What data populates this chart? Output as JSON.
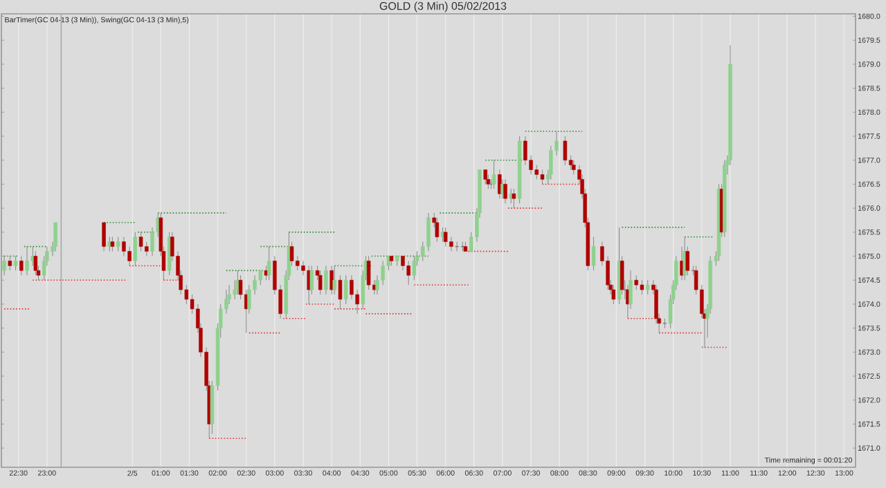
{
  "chart_data": {
    "type": "candlestick",
    "title": "GOLD (3 Min) 05/02/2013",
    "annotations": [
      "BarTimer(GC 04-13 (3 Min)), Swing(GC 04-13 (3 Min),5)",
      "Time remaining = 00:01:20"
    ],
    "x": [
      "2013-02-04T22:15",
      "2013-02-04T22:21",
      "2013-02-04T22:27",
      "2013-02-04T22:33",
      "2013-02-04T22:39",
      "2013-02-04T22:45",
      "2013-02-04T22:48",
      "2013-02-04T22:51",
      "2013-02-04T22:57",
      "2013-02-04T23:00",
      "2013-02-04T23:06",
      "2013-02-04T23:09",
      "2013-02-05T00:00",
      "2013-02-05T00:06",
      "2013-02-05T00:09",
      "2013-02-05T00:15",
      "2013-02-05T00:21",
      "2013-02-05T00:27",
      "2013-02-05T00:33",
      "2013-02-05T00:39",
      "2013-02-05T00:45",
      "2013-02-05T00:51",
      "2013-02-05T00:57",
      "2013-02-05T01:00",
      "2013-02-05T01:03",
      "2013-02-05T01:09",
      "2013-02-05T01:12",
      "2013-02-05T01:18",
      "2013-02-05T01:21",
      "2013-02-05T01:27",
      "2013-02-05T01:33",
      "2013-02-05T01:39",
      "2013-02-05T01:42",
      "2013-02-05T01:48",
      "2013-02-05T01:51",
      "2013-02-05T01:54",
      "2013-02-05T02:00",
      "2013-02-05T02:03",
      "2013-02-05T02:09",
      "2013-02-05T02:12",
      "2013-02-05T02:18",
      "2013-02-05T02:21",
      "2013-02-05T02:24",
      "2013-02-05T02:30",
      "2013-02-05T02:33",
      "2013-02-05T02:39",
      "2013-02-05T02:45",
      "2013-02-05T02:51",
      "2013-02-05T02:54",
      "2013-02-05T03:00",
      "2013-02-05T03:06",
      "2013-02-05T03:12",
      "2013-02-05T03:15",
      "2013-02-05T03:18",
      "2013-02-05T03:24",
      "2013-02-05T03:30",
      "2013-02-05T03:36",
      "2013-02-05T03:39",
      "2013-02-05T03:45",
      "2013-02-05T03:48",
      "2013-02-05T03:54",
      "2013-02-05T04:00",
      "2013-02-05T04:03",
      "2013-02-05T04:09",
      "2013-02-05T04:15",
      "2013-02-05T04:21",
      "2013-02-05T04:27",
      "2013-02-05T04:33",
      "2013-02-05T04:36",
      "2013-02-05T04:39",
      "2013-02-05T04:45",
      "2013-02-05T04:48",
      "2013-02-05T04:54",
      "2013-02-05T05:00",
      "2013-02-05T05:03",
      "2013-02-05T05:09",
      "2013-02-05T05:15",
      "2013-02-05T05:21",
      "2013-02-05T05:27",
      "2013-02-05T05:30",
      "2013-02-05T05:36",
      "2013-02-05T05:42",
      "2013-02-05T05:48",
      "2013-02-05T05:51",
      "2013-02-05T05:57",
      "2013-02-05T06:00",
      "2013-02-05T06:06",
      "2013-02-05T06:12",
      "2013-02-05T06:18",
      "2013-02-05T06:21",
      "2013-02-05T06:27",
      "2013-02-05T06:33",
      "2013-02-05T06:36",
      "2013-02-05T06:42",
      "2013-02-05T06:45",
      "2013-02-05T06:48",
      "2013-02-05T06:51",
      "2013-02-05T06:57",
      "2013-02-05T07:00",
      "2013-02-05T07:03",
      "2013-02-05T07:09",
      "2013-02-05T07:12",
      "2013-02-05T07:18",
      "2013-02-05T07:24",
      "2013-02-05T07:30",
      "2013-02-05T07:36",
      "2013-02-05T07:42",
      "2013-02-05T07:48",
      "2013-02-05T07:51",
      "2013-02-05T07:57",
      "2013-02-05T08:06",
      "2013-02-05T08:12",
      "2013-02-05T08:15",
      "2013-02-05T08:21",
      "2013-02-05T08:24",
      "2013-02-05T08:27",
      "2013-02-05T08:30",
      "2013-02-05T08:36",
      "2013-02-05T08:45",
      "2013-02-05T08:51",
      "2013-02-05T08:54",
      "2013-02-05T08:57",
      "2013-02-05T09:03",
      "2013-02-05T09:06",
      "2013-02-05T09:09",
      "2013-02-05T09:12",
      "2013-02-05T09:15",
      "2013-02-05T09:21",
      "2013-02-05T09:27",
      "2013-02-05T09:33",
      "2013-02-05T09:39",
      "2013-02-05T09:42",
      "2013-02-05T09:45",
      "2013-02-05T09:51",
      "2013-02-05T09:57",
      "2013-02-05T10:00",
      "2013-02-05T10:03",
      "2013-02-05T10:09",
      "2013-02-05T10:12",
      "2013-02-05T10:15",
      "2013-02-05T10:21",
      "2013-02-05T10:24",
      "2013-02-05T10:30",
      "2013-02-05T10:33",
      "2013-02-05T10:36",
      "2013-02-05T10:39",
      "2013-02-05T10:45",
      "2013-02-05T10:48",
      "2013-02-05T10:51",
      "2013-02-05T10:54",
      "2013-02-05T10:57",
      "2013-02-05T11:00"
    ],
    "ohlc": [
      [
        1674.7,
        1675.0,
        1674.6,
        1674.9
      ],
      [
        1674.9,
        1675.0,
        1674.7,
        1674.8
      ],
      [
        1674.8,
        1675.0,
        1674.7,
        1674.9
      ],
      [
        1674.9,
        1675.0,
        1674.6,
        1674.7
      ],
      [
        1674.7,
        1675.2,
        1674.6,
        1674.9
      ],
      [
        1674.9,
        1675.2,
        1674.8,
        1675.0
      ],
      [
        1675.0,
        1675.1,
        1674.6,
        1674.7
      ],
      [
        1674.7,
        1674.8,
        1674.5,
        1674.6
      ],
      [
        1674.6,
        1675.0,
        1674.5,
        1674.9
      ],
      [
        1674.9,
        1675.2,
        1674.8,
        1675.1
      ],
      [
        1675.1,
        1675.3,
        1675.0,
        1675.2
      ],
      [
        1675.2,
        1675.7,
        1675.1,
        1675.7
      ],
      [
        1675.7,
        1675.7,
        1675.1,
        1675.2
      ],
      [
        1675.2,
        1675.4,
        1675.1,
        1675.3
      ],
      [
        1675.3,
        1675.4,
        1675.1,
        1675.2
      ],
      [
        1675.2,
        1675.4,
        1675.1,
        1675.3
      ],
      [
        1675.3,
        1675.4,
        1675.0,
        1675.1
      ],
      [
        1675.1,
        1675.2,
        1674.8,
        1674.9
      ],
      [
        1674.9,
        1675.5,
        1674.8,
        1675.4
      ],
      [
        1675.4,
        1675.5,
        1675.1,
        1675.2
      ],
      [
        1675.2,
        1675.3,
        1675.0,
        1675.1
      ],
      [
        1675.1,
        1675.6,
        1675.0,
        1675.5
      ],
      [
        1675.5,
        1675.9,
        1675.4,
        1675.8
      ],
      [
        1675.8,
        1675.9,
        1675.0,
        1675.1
      ],
      [
        1675.1,
        1675.2,
        1674.5,
        1674.7
      ],
      [
        1674.7,
        1675.5,
        1674.6,
        1675.4
      ],
      [
        1675.4,
        1675.5,
        1674.9,
        1675.0
      ],
      [
        1675.0,
        1675.1,
        1674.5,
        1674.6
      ],
      [
        1674.6,
        1674.7,
        1674.2,
        1674.3
      ],
      [
        1674.3,
        1674.4,
        1674.0,
        1674.1
      ],
      [
        1674.1,
        1674.2,
        1673.8,
        1673.9
      ],
      [
        1673.9,
        1674.0,
        1673.4,
        1673.5
      ],
      [
        1673.5,
        1673.6,
        1672.9,
        1673.0
      ],
      [
        1673.0,
        1673.1,
        1672.2,
        1672.3
      ],
      [
        1672.3,
        1672.4,
        1671.2,
        1671.5
      ],
      [
        1671.5,
        1672.4,
        1671.3,
        1672.3
      ],
      [
        1672.3,
        1673.6,
        1672.2,
        1673.5
      ],
      [
        1673.5,
        1674.0,
        1673.3,
        1673.9
      ],
      [
        1673.9,
        1674.3,
        1673.8,
        1674.1
      ],
      [
        1674.1,
        1674.4,
        1674.0,
        1674.2
      ],
      [
        1674.2,
        1674.5,
        1674.1,
        1674.3
      ],
      [
        1674.3,
        1674.7,
        1674.2,
        1674.5
      ],
      [
        1674.5,
        1674.6,
        1674.1,
        1674.2
      ],
      [
        1674.2,
        1674.3,
        1673.4,
        1673.9
      ],
      [
        1673.9,
        1674.4,
        1673.8,
        1674.3
      ],
      [
        1674.3,
        1674.6,
        1674.2,
        1674.5
      ],
      [
        1674.5,
        1674.7,
        1674.4,
        1674.7
      ],
      [
        1674.7,
        1674.8,
        1674.5,
        1674.6
      ],
      [
        1674.6,
        1675.2,
        1674.5,
        1674.9
      ],
      [
        1674.9,
        1675.0,
        1674.2,
        1674.3
      ],
      [
        1674.3,
        1674.4,
        1673.7,
        1673.8
      ],
      [
        1673.8,
        1674.7,
        1673.7,
        1674.6
      ],
      [
        1674.6,
        1675.5,
        1674.5,
        1675.2
      ],
      [
        1675.2,
        1675.3,
        1674.8,
        1674.9
      ],
      [
        1674.9,
        1675.0,
        1674.7,
        1674.8
      ],
      [
        1674.8,
        1674.9,
        1674.6,
        1674.7
      ],
      [
        1674.7,
        1674.8,
        1674.0,
        1674.3
      ],
      [
        1674.3,
        1674.8,
        1674.2,
        1674.7
      ],
      [
        1674.7,
        1674.8,
        1674.5,
        1674.6
      ],
      [
        1674.6,
        1674.7,
        1674.2,
        1674.3
      ],
      [
        1674.3,
        1674.8,
        1674.2,
        1674.7
      ],
      [
        1674.7,
        1674.8,
        1674.2,
        1674.3
      ],
      [
        1674.3,
        1674.8,
        1674.2,
        1674.5
      ],
      [
        1674.5,
        1674.6,
        1673.9,
        1674.1
      ],
      [
        1674.1,
        1674.6,
        1674.0,
        1674.5
      ],
      [
        1674.5,
        1674.6,
        1674.1,
        1674.2
      ],
      [
        1674.2,
        1674.3,
        1673.8,
        1674.0
      ],
      [
        1674.0,
        1674.7,
        1673.9,
        1674.6
      ],
      [
        1674.6,
        1675.0,
        1674.5,
        1674.9
      ],
      [
        1674.9,
        1675.0,
        1674.3,
        1674.4
      ],
      [
        1674.4,
        1674.5,
        1674.2,
        1674.3
      ],
      [
        1674.3,
        1674.6,
        1674.2,
        1674.5
      ],
      [
        1674.5,
        1674.9,
        1674.4,
        1674.8
      ],
      [
        1674.8,
        1675.0,
        1674.7,
        1675.0
      ],
      [
        1675.0,
        1675.0,
        1674.8,
        1674.9
      ],
      [
        1674.9,
        1675.0,
        1674.8,
        1675.0
      ],
      [
        1675.0,
        1675.0,
        1674.7,
        1674.8
      ],
      [
        1674.8,
        1674.9,
        1674.4,
        1674.6
      ],
      [
        1674.6,
        1675.0,
        1674.5,
        1674.9
      ],
      [
        1674.9,
        1675.1,
        1674.8,
        1675.0
      ],
      [
        1675.0,
        1675.3,
        1674.9,
        1675.2
      ],
      [
        1675.2,
        1675.9,
        1675.1,
        1675.8
      ],
      [
        1675.8,
        1675.9,
        1675.6,
        1675.7
      ],
      [
        1675.7,
        1675.8,
        1675.3,
        1675.4
      ],
      [
        1675.4,
        1675.6,
        1675.3,
        1675.5
      ],
      [
        1675.5,
        1675.6,
        1675.2,
        1675.3
      ],
      [
        1675.3,
        1675.4,
        1675.1,
        1675.2
      ],
      [
        1675.2,
        1675.3,
        1675.1,
        1675.2
      ],
      [
        1675.2,
        1675.3,
        1675.1,
        1675.2
      ],
      [
        1675.2,
        1675.3,
        1675.1,
        1675.1
      ],
      [
        1675.1,
        1675.5,
        1675.1,
        1675.4
      ],
      [
        1675.4,
        1676.0,
        1675.3,
        1675.9
      ],
      [
        1675.9,
        1676.8,
        1675.8,
        1676.8
      ],
      [
        1676.8,
        1676.8,
        1676.5,
        1676.6
      ],
      [
        1676.6,
        1676.7,
        1676.4,
        1676.5
      ],
      [
        1676.5,
        1676.6,
        1676.4,
        1676.5
      ],
      [
        1676.5,
        1677.0,
        1676.4,
        1676.7
      ],
      [
        1676.7,
        1676.8,
        1676.2,
        1676.3
      ],
      [
        1676.3,
        1676.6,
        1676.2,
        1676.5
      ],
      [
        1676.5,
        1676.6,
        1676.1,
        1676.2
      ],
      [
        1676.2,
        1676.4,
        1676.1,
        1676.3
      ],
      [
        1676.3,
        1676.4,
        1676.0,
        1676.2
      ],
      [
        1676.2,
        1677.5,
        1676.1,
        1677.4
      ],
      [
        1677.4,
        1677.5,
        1676.9,
        1677.0
      ],
      [
        1677.0,
        1677.1,
        1676.7,
        1676.8
      ],
      [
        1676.8,
        1676.9,
        1676.6,
        1676.7
      ],
      [
        1676.7,
        1676.8,
        1676.5,
        1676.6
      ],
      [
        1676.6,
        1676.8,
        1676.5,
        1676.7
      ],
      [
        1676.7,
        1677.3,
        1676.6,
        1677.2
      ],
      [
        1677.2,
        1677.6,
        1677.1,
        1677.4
      ],
      [
        1677.4,
        1677.5,
        1676.9,
        1677.0
      ],
      [
        1677.0,
        1677.1,
        1676.8,
        1676.9
      ],
      [
        1676.9,
        1677.0,
        1676.7,
        1676.8
      ],
      [
        1676.8,
        1676.9,
        1676.5,
        1676.6
      ],
      [
        1676.6,
        1676.7,
        1676.2,
        1676.3
      ],
      [
        1676.3,
        1676.4,
        1675.6,
        1675.7
      ],
      [
        1675.7,
        1675.8,
        1674.7,
        1674.8
      ],
      [
        1674.8,
        1675.4,
        1674.7,
        1675.2
      ],
      [
        1675.2,
        1675.3,
        1674.8,
        1674.9
      ],
      [
        1674.9,
        1675.0,
        1674.3,
        1674.4
      ],
      [
        1674.4,
        1674.5,
        1674.2,
        1674.3
      ],
      [
        1674.3,
        1674.4,
        1674.0,
        1674.1
      ],
      [
        1674.1,
        1675.6,
        1674.0,
        1674.9
      ],
      [
        1674.9,
        1675.0,
        1674.2,
        1674.3
      ],
      [
        1674.3,
        1674.5,
        1674.1,
        1674.3
      ],
      [
        1674.3,
        1674.4,
        1673.7,
        1674.0
      ],
      [
        1674.0,
        1674.7,
        1673.9,
        1674.5
      ],
      [
        1674.5,
        1674.6,
        1674.3,
        1674.4
      ],
      [
        1674.4,
        1674.5,
        1674.2,
        1674.3
      ],
      [
        1674.3,
        1674.5,
        1674.2,
        1674.4
      ],
      [
        1674.4,
        1674.5,
        1674.2,
        1674.3
      ],
      [
        1674.3,
        1674.4,
        1673.6,
        1673.7
      ],
      [
        1673.7,
        1673.8,
        1673.4,
        1673.6
      ],
      [
        1673.6,
        1673.7,
        1673.5,
        1673.6
      ],
      [
        1673.6,
        1674.2,
        1673.5,
        1674.1
      ],
      [
        1674.1,
        1674.5,
        1674.0,
        1674.4
      ],
      [
        1674.4,
        1675.0,
        1674.3,
        1674.9
      ],
      [
        1674.9,
        1675.2,
        1674.5,
        1674.6
      ],
      [
        1674.6,
        1675.4,
        1674.5,
        1675.1
      ],
      [
        1675.1,
        1675.2,
        1674.6,
        1674.7
      ],
      [
        1674.7,
        1674.8,
        1674.6,
        1674.7
      ],
      [
        1674.7,
        1674.8,
        1674.2,
        1674.3
      ],
      [
        1674.3,
        1674.4,
        1673.7,
        1673.8
      ],
      [
        1673.8,
        1673.9,
        1673.1,
        1673.7
      ],
      [
        1673.7,
        1674.0,
        1673.3,
        1673.9
      ],
      [
        1673.9,
        1675.0,
        1673.8,
        1674.9
      ],
      [
        1674.9,
        1675.1,
        1674.8,
        1675.0
      ],
      [
        1675.0,
        1676.5,
        1674.9,
        1676.4
      ],
      [
        1676.4,
        1676.5,
        1675.4,
        1675.5
      ],
      [
        1675.5,
        1677.0,
        1675.4,
        1676.9
      ],
      [
        1676.9,
        1677.1,
        1676.7,
        1677.0
      ],
      [
        1677.0,
        1679.4,
        1676.9,
        1679.0
      ]
    ],
    "colors": [
      "#8fd18f",
      "#b00000",
      "#8fd18f",
      "#b00000",
      "#8fd18f",
      "#8fd18f",
      "#b00000",
      "#b00000",
      "#8fd18f",
      "#8fd18f",
      "#8fd18f",
      "#8fd18f",
      "#b00000",
      "#8fd18f",
      "#b00000",
      "#8fd18f",
      "#b00000",
      "#b00000",
      "#8fd18f",
      "#b00000",
      "#b00000",
      "#8fd18f",
      "#8fd18f",
      "#b00000",
      "#b00000",
      "#8fd18f",
      "#b00000",
      "#b00000",
      "#b00000",
      "#b00000",
      "#b00000",
      "#b00000",
      "#b00000",
      "#b00000",
      "#b00000",
      "#8fd18f",
      "#8fd18f",
      "#8fd18f",
      "#8fd18f",
      "#8fd18f",
      "#8fd18f",
      "#8fd18f",
      "#b00000",
      "#b00000",
      "#8fd18f",
      "#8fd18f",
      "#8fd18f",
      "#b00000",
      "#8fd18f",
      "#b00000",
      "#b00000",
      "#8fd18f",
      "#8fd18f",
      "#b00000",
      "#b00000",
      "#b00000",
      "#b00000",
      "#8fd18f",
      "#b00000",
      "#b00000",
      "#8fd18f",
      "#b00000",
      "#8fd18f",
      "#b00000",
      "#8fd18f",
      "#b00000",
      "#b00000",
      "#8fd18f",
      "#8fd18f",
      "#b00000",
      "#b00000",
      "#8fd18f",
      "#8fd18f",
      "#8fd18f",
      "#b00000",
      "#8fd18f",
      "#b00000",
      "#b00000",
      "#8fd18f",
      "#8fd18f",
      "#8fd18f",
      "#8fd18f",
      "#b00000",
      "#b00000",
      "#8fd18f",
      "#b00000",
      "#b00000",
      "#808080",
      "#808080",
      "#b00000",
      "#8fd18f",
      "#8fd18f",
      "#8fd18f",
      "#b00000",
      "#b00000",
      "#808080",
      "#8fd18f",
      "#b00000",
      "#8fd18f",
      "#b00000",
      "#8fd18f",
      "#b00000",
      "#8fd18f",
      "#b00000",
      "#b00000",
      "#b00000",
      "#b00000",
      "#8fd18f",
      "#8fd18f",
      "#8fd18f",
      "#b00000",
      "#b00000",
      "#b00000",
      "#b00000",
      "#b00000",
      "#b00000",
      "#b00000",
      "#8fd18f",
      "#b00000",
      "#b00000",
      "#b00000",
      "#b00000",
      "#8fd18f",
      "#b00000",
      "#808080",
      "#b00000",
      "#8fd18f",
      "#b00000",
      "#b00000",
      "#8fd18f",
      "#b00000",
      "#b00000",
      "#b00000",
      "#808080",
      "#8fd18f",
      "#8fd18f",
      "#8fd18f",
      "#b00000",
      "#8fd18f",
      "#b00000",
      "#808080",
      "#b00000",
      "#b00000",
      "#b00000",
      "#8fd18f",
      "#8fd18f",
      "#8fd18f",
      "#8fd18f",
      "#b00000",
      "#8fd18f",
      "#8fd18f",
      "#8fd18f"
    ],
    "series": [
      {
        "type": "line",
        "color": "#2e8b2e",
        "line_style": "dotted",
        "x": [
          "2013-02-04T22:15",
          "2013-02-04T22:30",
          null,
          "2013-02-04T22:36",
          "2013-02-04T23:00",
          null,
          "2013-02-05T00:00",
          "2013-02-05T00:33",
          null,
          "2013-02-05T00:36",
          "2013-02-05T00:54",
          null,
          "2013-02-05T00:57",
          "2013-02-05T02:09",
          null,
          "2013-02-05T02:09",
          "2013-02-05T02:48",
          null,
          "2013-02-05T02:45",
          "2013-02-05T03:15",
          null,
          "2013-02-05T03:15",
          "2013-02-05T04:03",
          null,
          "2013-02-05T04:03",
          "2013-02-05T04:42",
          null,
          "2013-02-05T04:42",
          "2013-02-05T05:42",
          null,
          "2013-02-05T05:54",
          "2013-02-05T06:33",
          null,
          "2013-02-05T06:42",
          "2013-02-05T07:21",
          null,
          "2013-02-05T07:24",
          "2013-02-05T08:24",
          null,
          "2013-02-05T09:06",
          "2013-02-05T10:12",
          null,
          "2013-02-05T10:12",
          "2013-02-05T10:42"
        ],
        "values": [
          1675.0,
          1675.0,
          null,
          1675.2,
          1675.2,
          null,
          1675.7,
          1675.7,
          null,
          1675.5,
          1675.5,
          null,
          1675.9,
          1675.9,
          null,
          1674.7,
          1674.7,
          null,
          1675.2,
          1675.2,
          null,
          1675.5,
          1675.5,
          null,
          1674.8,
          1674.8,
          null,
          1675.0,
          1675.0,
          null,
          1675.9,
          1675.9,
          null,
          1677.0,
          1677.0,
          null,
          1677.6,
          1677.6,
          null,
          1675.6,
          1675.6,
          null,
          1675.4,
          1675.4
        ]
      },
      {
        "type": "line",
        "color": "#e03030",
        "line_style": "dotted",
        "x": [
          "2013-02-04T22:15",
          "2013-02-04T22:42",
          null,
          "2013-02-04T22:45",
          "2013-02-05T00:24",
          null,
          "2013-02-05T00:27",
          "2013-02-05T01:03",
          null,
          "2013-02-05T01:03",
          "2013-02-05T01:24",
          null,
          "2013-02-05T01:51",
          "2013-02-05T02:30",
          null,
          "2013-02-05T02:33",
          "2013-02-05T03:06",
          null,
          "2013-02-05T03:09",
          "2013-02-05T03:33",
          null,
          "2013-02-05T03:33",
          "2013-02-05T04:03",
          null,
          "2013-02-05T04:03",
          "2013-02-05T04:36",
          null,
          "2013-02-05T04:36",
          "2013-02-05T05:24",
          null,
          "2013-02-05T05:27",
          "2013-02-05T06:24",
          null,
          "2013-02-05T06:24",
          "2013-02-05T07:06",
          null,
          "2013-02-05T07:06",
          "2013-02-05T07:42",
          null,
          "2013-02-05T07:42",
          "2013-02-05T08:24",
          null,
          "2013-02-05T09:12",
          "2013-02-05T09:45",
          null,
          "2013-02-05T09:45",
          "2013-02-05T10:30",
          null,
          "2013-02-05T10:30",
          "2013-02-05T10:57"
        ],
        "values": [
          1673.9,
          1673.9,
          null,
          1674.5,
          1674.5,
          null,
          1674.8,
          1674.8,
          null,
          1674.5,
          1674.5,
          null,
          1671.2,
          1671.2,
          null,
          1673.4,
          1673.4,
          null,
          1673.7,
          1673.7,
          null,
          1674.0,
          1674.0,
          null,
          1673.9,
          1673.9,
          null,
          1673.8,
          1673.8,
          null,
          1674.4,
          1674.4,
          null,
          1675.1,
          1675.1,
          null,
          1676.0,
          1676.0,
          null,
          1676.5,
          1676.5,
          null,
          1673.7,
          1673.7,
          null,
          1673.4,
          1673.4,
          null,
          1673.1,
          1673.1
        ]
      }
    ],
    "ref_lines": [
      {
        "axis": "x",
        "value": "2013-02-04T23:15",
        "color": "#a8a8a8"
      }
    ],
    "xlim": [
      "2013-02-04T22:12",
      "2013-02-05T13:12"
    ],
    "xticks": [
      {
        "value": "2013-02-04T22:30",
        "label": "22:30"
      },
      {
        "value": "2013-02-04T23:00",
        "label": "23:00"
      },
      {
        "value": "2013-02-05T00:30",
        "label": "2/5"
      },
      {
        "value": "2013-02-05T01:00",
        "label": "01:00"
      },
      {
        "value": "2013-02-05T01:30",
        "label": "01:30"
      },
      {
        "value": "2013-02-05T02:00",
        "label": "02:00"
      },
      {
        "value": "2013-02-05T02:30",
        "label": "02:30"
      },
      {
        "value": "2013-02-05T03:00",
        "label": "03:00"
      },
      {
        "value": "2013-02-05T03:30",
        "label": "03:30"
      },
      {
        "value": "2013-02-05T04:00",
        "label": "04:00"
      },
      {
        "value": "2013-02-05T04:30",
        "label": "04:30"
      },
      {
        "value": "2013-02-05T05:00",
        "label": "05:00"
      },
      {
        "value": "2013-02-05T05:30",
        "label": "05:30"
      },
      {
        "value": "2013-02-05T06:00",
        "label": "06:00"
      },
      {
        "value": "2013-02-05T06:30",
        "label": "06:30"
      },
      {
        "value": "2013-02-05T07:00",
        "label": "07:00"
      },
      {
        "value": "2013-02-05T07:30",
        "label": "07:30"
      },
      {
        "value": "2013-02-05T08:00",
        "label": "08:00"
      },
      {
        "value": "2013-02-05T08:30",
        "label": "08:30"
      },
      {
        "value": "2013-02-05T09:00",
        "label": "09:00"
      },
      {
        "value": "2013-02-05T09:30",
        "label": "09:30"
      },
      {
        "value": "2013-02-05T10:00",
        "label": "10:00"
      },
      {
        "value": "2013-02-05T10:30",
        "label": "10:30"
      },
      {
        "value": "2013-02-05T11:00",
        "label": "11:00"
      },
      {
        "value": "2013-02-05T11:30",
        "label": "11:30"
      },
      {
        "value": "2013-02-05T12:00",
        "label": "12:00"
      },
      {
        "value": "2013-02-05T12:30",
        "label": "12:30"
      },
      {
        "value": "2013-02-05T13:00",
        "label": "13:00"
      }
    ],
    "ylim": [
      1670.6,
      1680.05
    ],
    "yticks": [
      {
        "value": 1671.0,
        "label": "1671.0"
      },
      {
        "value": 1671.5,
        "label": "1671.5"
      },
      {
        "value": 1672.0,
        "label": "1672.0"
      },
      {
        "value": 1672.5,
        "label": "1672.5"
      },
      {
        "value": 1673.0,
        "label": "1673.0"
      },
      {
        "value": 1673.5,
        "label": "1673.5"
      },
      {
        "value": 1674.0,
        "label": "1674.0"
      },
      {
        "value": 1674.5,
        "label": "1674.5"
      },
      {
        "value": 1675.0,
        "label": "1675.0"
      },
      {
        "value": 1675.5,
        "label": "1675.5"
      },
      {
        "value": 1676.0,
        "label": "1676.0"
      },
      {
        "value": 1676.5,
        "label": "1676.5"
      },
      {
        "value": 1677.0,
        "label": "1677.0"
      },
      {
        "value": 1677.5,
        "label": "1677.5"
      },
      {
        "value": 1678.0,
        "label": "1678.0"
      },
      {
        "value": 1678.5,
        "label": "1678.5"
      },
      {
        "value": 1679.0,
        "label": "1679.0"
      },
      {
        "value": 1679.5,
        "label": "1679.5"
      },
      {
        "value": 1680.0,
        "label": "1680.0"
      }
    ],
    "grid": "x"
  }
}
